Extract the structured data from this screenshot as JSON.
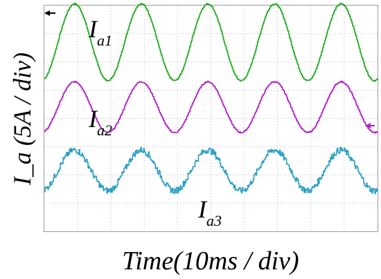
{
  "chart_data": {
    "type": "line",
    "title": "",
    "xlabel": "Time(10ms / div)",
    "ylabel": "I_a (5A / div)",
    "grid": true,
    "x_divisions": 10,
    "y_divisions": 8,
    "xlim": [
      0,
      100
    ],
    "ylim": [
      0,
      40
    ],
    "x_unit": "ms",
    "y_unit": "A",
    "series": [
      {
        "name": "I_a1",
        "label_main": "I",
        "label_sub": "a1",
        "color": "#1faa1f",
        "offset": 33.5,
        "amplitude": 6.8,
        "period": 20,
        "phase": 0,
        "noise": 0.12
      },
      {
        "name": "I_a2",
        "label_main": "I",
        "label_sub": "a2",
        "color": "#b01fc8",
        "offset": 22.0,
        "amplitude": 4.5,
        "period": 20,
        "phase": 0,
        "noise": 0.12
      },
      {
        "name": "I_a3",
        "label_main": "I",
        "label_sub": "a3",
        "color": "#2a9fc2",
        "offset": 10.8,
        "amplitude": 3.6,
        "period": 20,
        "phase": 0,
        "noise": 0.55
      }
    ]
  }
}
